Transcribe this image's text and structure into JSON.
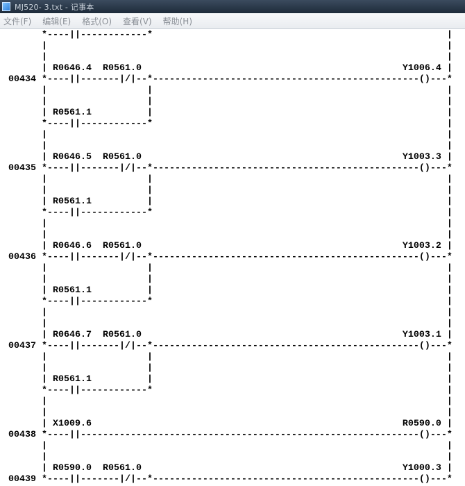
{
  "window": {
    "title": "MJ520- 3.txt - 记事本",
    "icon": "notepad-icon"
  },
  "menu": {
    "items": [
      "文件(F)",
      "编辑(E)",
      "格式(O)",
      "查看(V)",
      "帮助(H)"
    ]
  },
  "document": {
    "lines": [
      "       *----||------------*                                                     |",
      "       |                                                                        |",
      "       |                                                                        |",
      "       | R0646.4  R0561.0                                               Y1006.4 |",
      " 00434 *----||-------|/|--*------------------------------------------------()---*",
      "       |                  |                                                     |",
      "       |                  |                                                     |",
      "       | R0561.1          |                                                     |",
      "       *----||------------*                                                     |",
      "       |                                                                        |",
      "       |                                                                        |",
      "       | R0646.5  R0561.0                                               Y1003.3 |",
      " 00435 *----||-------|/|--*------------------------------------------------()---*",
      "       |                  |                                                     |",
      "       |                  |                                                     |",
      "       | R0561.1          |                                                     |",
      "       *----||------------*                                                     |",
      "       |                                                                        |",
      "       |                                                                        |",
      "       | R0646.6  R0561.0                                               Y1003.2 |",
      " 00436 *----||-------|/|--*------------------------------------------------()---*",
      "       |                  |                                                     |",
      "       |                  |                                                     |",
      "       | R0561.1          |                                                     |",
      "       *----||------------*                                                     |",
      "       |                                                                        |",
      "       |                                                                        |",
      "       | R0646.7  R0561.0                                               Y1003.1 |",
      " 00437 *----||-------|/|--*------------------------------------------------()---*",
      "       |                  |                                                     |",
      "       |                  |                                                     |",
      "       | R0561.1          |                                                     |",
      "       *----||------------*                                                     |",
      "       |                                                                        |",
      "       |                                                                        |",
      "       | X1009.6                                                        R0590.0 |",
      " 00438 *----||-------------------------------------------------------------()---*",
      "       |                                                                        |",
      "       |                                                                        |",
      "       | R0590.0  R0561.0                                               Y1000.3 |",
      " 00439 *----||-------|/|--*------------------------------------------------()---*"
    ]
  }
}
